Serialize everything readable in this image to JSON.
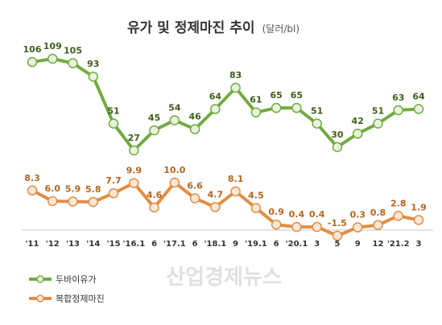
{
  "chart_data": {
    "type": "line",
    "title": "유가 및 정제마진 추이",
    "unit": "(달러/bl)",
    "watermark": "산업경제뉴스",
    "categories": [
      "'11",
      "'12",
      "'13",
      "'14",
      "'15",
      "'16.1",
      "6",
      "'17.1",
      "6",
      "'18.1",
      "9",
      "'19.1",
      "6",
      "'20.1",
      "3",
      "5",
      "9",
      "12",
      "'21.2",
      "3"
    ],
    "series": [
      {
        "name": "두바이유가",
        "color": "#72ab42",
        "marker_fill": "#e8f3dc",
        "values": [
          106,
          109,
          105,
          93,
          51,
          27,
          45,
          54,
          46,
          64,
          83,
          61,
          65,
          65,
          51,
          30,
          42,
          51,
          63,
          64
        ]
      },
      {
        "name": "복합정제마진",
        "color": "#e08e45",
        "marker_fill": "#fbe7d7",
        "values": [
          8.3,
          6.0,
          5.9,
          5.8,
          7.7,
          9.9,
          4.6,
          10.0,
          6.6,
          4.7,
          8.1,
          4.5,
          0.9,
          0.4,
          0.4,
          -1.5,
          0.3,
          0.8,
          2.8,
          1.9
        ]
      }
    ],
    "legend_position": "bottom-left",
    "grid": false
  }
}
